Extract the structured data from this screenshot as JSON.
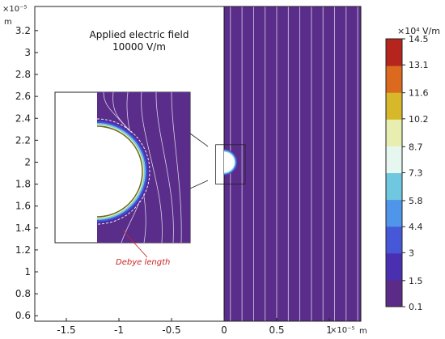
{
  "chart_data": {
    "type": "heatmap",
    "title": "",
    "x_multiplier": "×10⁻⁵",
    "x_unit": "m",
    "y_multiplier": "×10⁻⁵",
    "y_unit": "m",
    "xlim": [
      -1.8,
      1.3
    ],
    "ylim": [
      0.55,
      3.42
    ],
    "x_ticks": [
      -1.5,
      -1,
      -0.5,
      0,
      0.5,
      1
    ],
    "x_tick_labels": [
      "-1.5",
      "-1",
      "-0.5",
      "0",
      "0.5",
      "1"
    ],
    "y_ticks": [
      0.6,
      0.8,
      1,
      1.2,
      1.4,
      1.6,
      1.8,
      2,
      2.2,
      2.4,
      2.6,
      2.8,
      3,
      3.2
    ],
    "y_tick_labels": [
      "0.6",
      "0.8",
      "1",
      "1.2",
      "1.4",
      "1.6",
      "1.8",
      "2",
      "2.2",
      "2.4",
      "2.6",
      "2.8",
      "3",
      "3.2"
    ],
    "annotation_lines": [
      "Applied electric field",
      "10000 V/m"
    ],
    "inset_label": "Debye length",
    "colorbar": {
      "multiplier": "×10⁴",
      "unit": "V/m",
      "ticks": [
        "14.5",
        "13.1",
        "11.6",
        "10.2",
        "8.7",
        "7.3",
        "5.8",
        "4.4",
        "3",
        "1.5",
        "0.1"
      ],
      "values": [
        14.5,
        13.1,
        11.6,
        10.2,
        8.7,
        7.3,
        5.8,
        4.4,
        3.0,
        1.5,
        0.1
      ],
      "colors": [
        "#5c2a87",
        "#4a2fb0",
        "#4658d8",
        "#4f95ea",
        "#6fc8e0",
        "#e6f7ef",
        "#e8eeb0",
        "#d6b82a",
        "#dc6a1e",
        "#b5251e"
      ]
    },
    "domain": {
      "x_min": 0,
      "x_max": 1.3,
      "y_min": 0.55,
      "y_max": 3.42,
      "fill": "#5a2d8a",
      "field_lines_x": [
        0.06,
        0.17,
        0.28,
        0.39,
        0.5,
        0.61,
        0.72,
        0.83,
        0.94,
        1.05,
        1.16,
        1.27
      ]
    },
    "hemisphere": {
      "center_x": 0,
      "center_y": 2.0,
      "radius": 0.1
    },
    "zoom_box": {
      "x_min": -0.08,
      "x_max": 0.2,
      "y_min": 1.8,
      "y_max": 2.16
    }
  }
}
